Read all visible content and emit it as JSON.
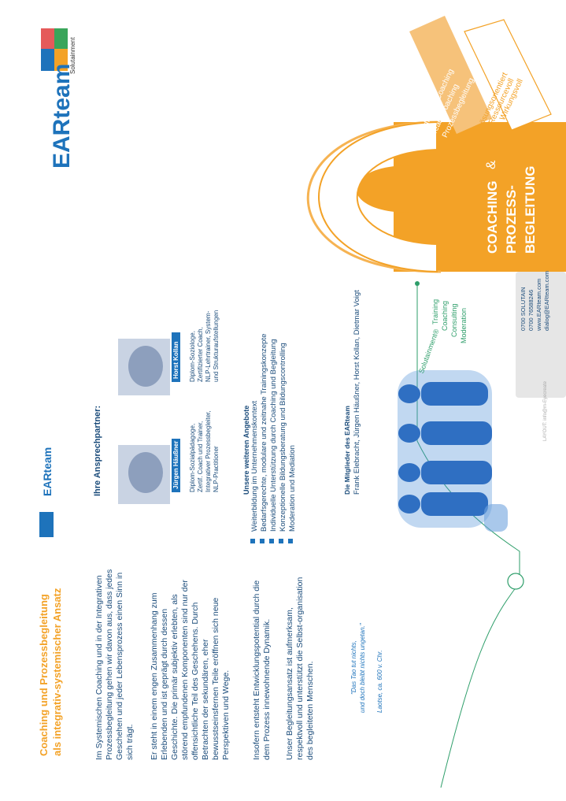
{
  "panel_left": {
    "heading_line1": "Coaching und Prozessbegleitung",
    "heading_line2": "als integrativ-systemischer Ansatz",
    "para1": "Im Systemischen Coaching und in der Integrativen Prozessbegleitung gehen wir davon aus, dass jedes Geschehen und jeder Lebensprozess einen Sinn in sich trägt.",
    "para2": "Er steht in einem engen Zusammenhang zum Erlebenden und ist geprägt durch dessen Geschichte. Die primär subjektiv erlebten, als störend empfundenen Komponenten sind nur der offensichtliche Teil des Geschehens. Durch Betrachten der sekundären, eher bewusstseinsfernen Teile eröffnen sich neue Perspektiven und Wege.",
    "para3": "Insofern entsteht Entwicklungspotential durch die dem Prozess innewohnende Dynamik.",
    "para4": "Unser Begleitungsansatz ist aufmerksam, respektvoll und unterstützt die Selbst-organisation des begleiteten Menschen.",
    "quote_line1": "\"Das Tao tut nichts,",
    "quote_line2": "und doch bleibt nichts ungetan.\"",
    "quote_author": "Laotse, ca. 600 v. Chr."
  },
  "panel_middle": {
    "brand": "EARteam",
    "contacts_heading": "Ihre Ansprechpartner:",
    "contacts": [
      {
        "name": "Jürgen Häußner",
        "desc1": "Diplom-Sozialpädagoge,",
        "desc2": "Zertif. Coach und Trainer,",
        "desc3": "Integrativer Prozessbegleiter,",
        "desc4": "NLP-Practitioner"
      },
      {
        "name": "Horst Kollan",
        "desc1": "Diplom-Soziologe,",
        "desc2": "Zertifizierter Coach,",
        "desc3": "NLP-Lehrtrainer, System-",
        "desc4": "und Strukturaufstellungen"
      }
    ],
    "offers_heading": "Unsere weiteren Angebote",
    "offers": [
      "Weiterbildung im Unternehmenskontext",
      "Bedarfsgerechte, modulare und zeitnahe Trainingskonzepte",
      "Individuelle Unterstützung durch Coaching und Begleitung",
      "Konzeptionelle Bildungsberatung und Bildungscontrolling",
      "Moderation und Mediation"
    ],
    "members_heading": "Die Mitglieder des EARteam",
    "members": "Frank Elebracht, Jürgen Häußner, Horst Kollan, Dietmar Voigt"
  },
  "panel_right": {
    "logo_text": "EARteam",
    "logo_sub": "Solutainment",
    "orange_lines": [
      "Individual Coaching",
      "Team Coaching",
      "Prozessbegleitung"
    ],
    "outline_lines": [
      "Lösungsorientiert",
      "Ressourcevoll",
      "Wirkungsvoll"
    ],
    "title": [
      "COACHING",
      "&",
      "PROZESS-",
      "BEGLEITUNG"
    ],
    "solutainment_label": "Solutainment®",
    "services": [
      "Training",
      "Coaching",
      "Consulting",
      "Moderation"
    ],
    "contact_lines": [
      "0700 SOLUTAIN",
      "0700 76588246",
      "www.EARteam.com",
      "dialog@EARteam.com"
    ],
    "layout_credit": "LAYOUT: info@m-Eyecreate"
  },
  "colors": {
    "orange": "#f3a227",
    "blue": "#1e73bb",
    "green": "#2e9e6a",
    "navy": "#1a4b7a"
  }
}
